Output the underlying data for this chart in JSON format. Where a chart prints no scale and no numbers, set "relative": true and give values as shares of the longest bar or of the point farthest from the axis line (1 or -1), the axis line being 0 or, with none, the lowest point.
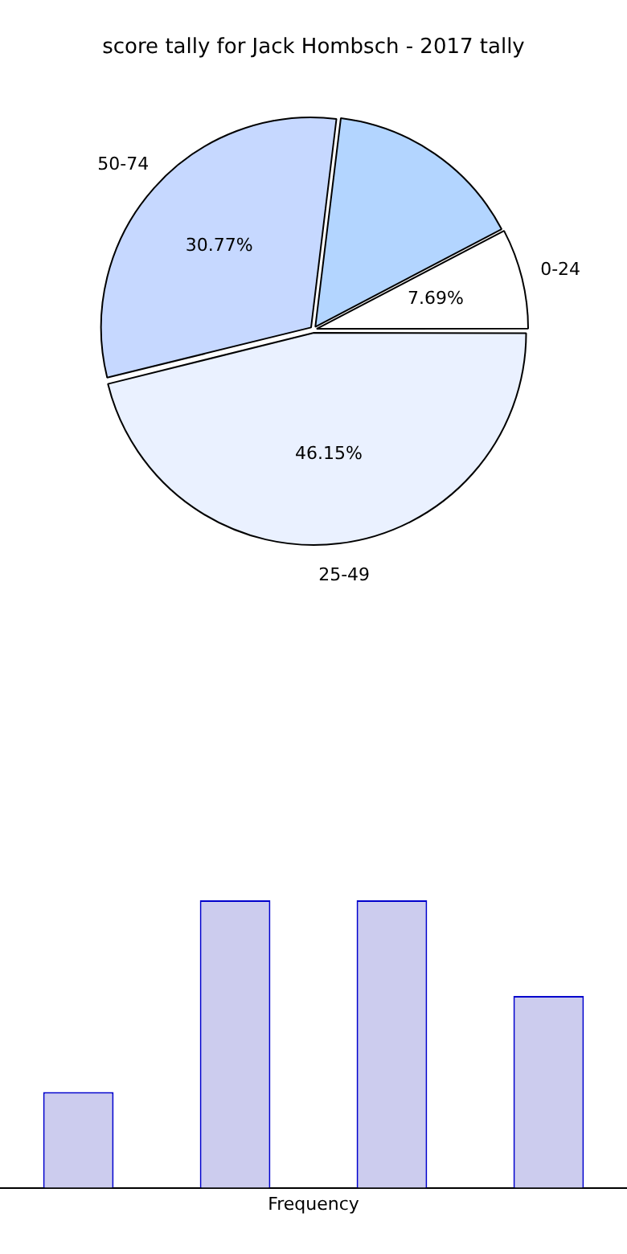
{
  "chart_data": [
    {
      "type": "pie",
      "title": "score tally for Jack Hombsch - 2017 tally",
      "categories": [
        "0-24",
        "25-49",
        "50-74",
        null
      ],
      "values": [
        7.69,
        46.15,
        30.77,
        15.38
      ],
      "colors": [
        "#ffffff",
        "#eaf1ff",
        "#c6d8ff",
        "#b3d5ff"
      ],
      "value_labels": [
        "7.69%",
        "46.15%",
        "30.77%",
        null
      ],
      "legend": false
    },
    {
      "type": "bar",
      "xlabel": "Frequency",
      "categories": [
        null,
        null,
        null,
        null
      ],
      "values": [
        0.333,
        1,
        1,
        0.667
      ],
      "color": "#ccccee",
      "relative": true,
      "grid": false,
      "legend": false
    }
  ]
}
